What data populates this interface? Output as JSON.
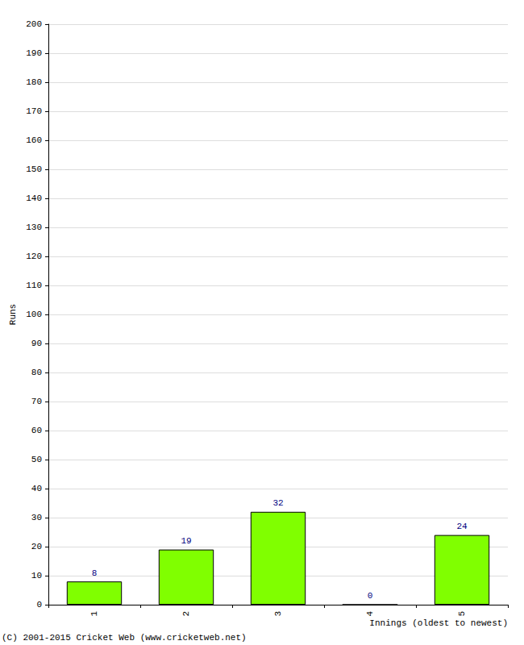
{
  "chart_data": {
    "type": "bar",
    "x_label": "Innings (oldest to newest)",
    "y_label": "Runs",
    "categories": [
      "1",
      "2",
      "3",
      "4",
      "5"
    ],
    "values": [
      8,
      19,
      32,
      0,
      24
    ],
    "color": "#80ff00",
    "ylim": [
      0,
      200
    ],
    "yticks": [
      0,
      10,
      20,
      30,
      40,
      50,
      60,
      70,
      80,
      90,
      100,
      110,
      120,
      130,
      140,
      150,
      160,
      170,
      180,
      190,
      200
    ],
    "grid": true,
    "data_labels": true,
    "annotations": [
      "(C) 2001-2015 Cricket Web (www.cricketweb.net)"
    ]
  }
}
